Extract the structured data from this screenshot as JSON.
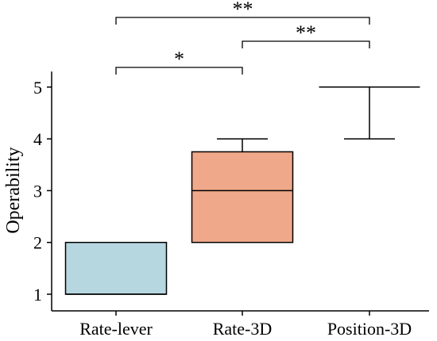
{
  "chart_data": {
    "type": "box",
    "title": "",
    "xlabel": "",
    "ylabel": "Operability",
    "ylim": [
      0.8,
      5.3
    ],
    "yticks": [
      1,
      2,
      3,
      4,
      5
    ],
    "grid": false,
    "categories": [
      "Rate-lever",
      "Rate-3D",
      "Position-3D"
    ],
    "boxes": [
      {
        "category": "Rate-lever",
        "min": 1,
        "q1": 1,
        "median": 1,
        "q3": 2,
        "max": 2,
        "color": "#b6d6e0"
      },
      {
        "category": "Rate-3D",
        "min": 2,
        "q1": 2,
        "median": 3,
        "q3": 3.75,
        "max": 4,
        "color": "#efa88a"
      },
      {
        "category": "Position-3D",
        "min": 4,
        "q1": 5,
        "median": 5,
        "q3": 5,
        "max": 5,
        "color": "#ffffff"
      }
    ],
    "significance": [
      {
        "from": "Rate-lever",
        "to": "Rate-3D",
        "label": "*"
      },
      {
        "from": "Rate-3D",
        "to": "Position-3D",
        "label": "**"
      },
      {
        "from": "Rate-lever",
        "to": "Position-3D",
        "label": "**"
      }
    ]
  }
}
